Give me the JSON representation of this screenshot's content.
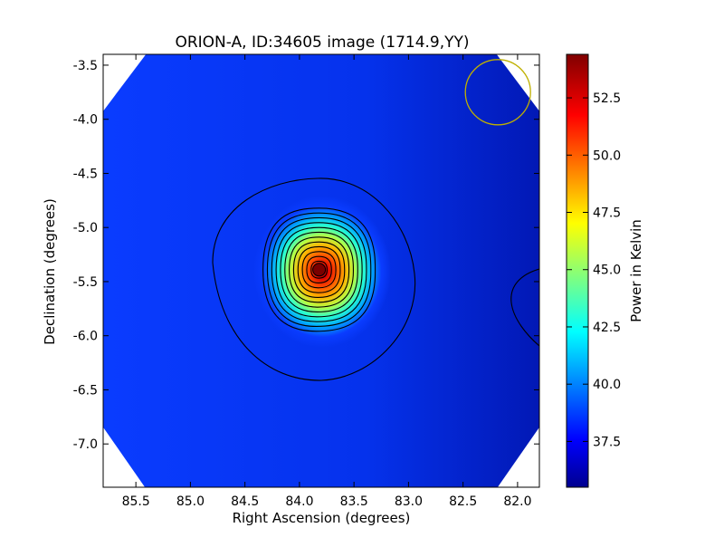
{
  "chart_data": {
    "type": "heatmap",
    "title": "ORION-A, ID:34605 image (1714.9,YY)",
    "xlabel": "Right Ascension (degrees)",
    "ylabel": "Declination (degrees)",
    "xlim": [
      85.8,
      81.8
    ],
    "ylim": [
      -7.4,
      -3.4
    ],
    "x_ticks": [
      "85.5",
      "85.0",
      "84.5",
      "84.0",
      "83.5",
      "83.0",
      "82.5",
      "82.0"
    ],
    "y_ticks": [
      "-3.5",
      "-4.0",
      "-4.5",
      "-5.0",
      "-5.5",
      "-6.0",
      "-6.5",
      "-7.0"
    ],
    "source": {
      "ra": 83.82,
      "dec": -5.39,
      "peak": 54.3
    },
    "background": 37.6,
    "contour_levels": [
      38.2,
      39.5,
      40.8,
      42.1,
      43.4,
      44.7,
      46.0,
      47.3,
      48.6,
      49.9,
      51.2,
      52.5,
      53.6
    ],
    "beam": {
      "ra": 82.18,
      "dec": -3.75,
      "color": "#bfb000"
    },
    "colorbar": {
      "label": "Power in Kelvin",
      "range": [
        35.5,
        54.4
      ],
      "ticks": [
        "37.5",
        "40.0",
        "42.5",
        "45.0",
        "47.5",
        "50.0",
        "52.5"
      ],
      "colormap": "jet"
    },
    "grid": false
  }
}
